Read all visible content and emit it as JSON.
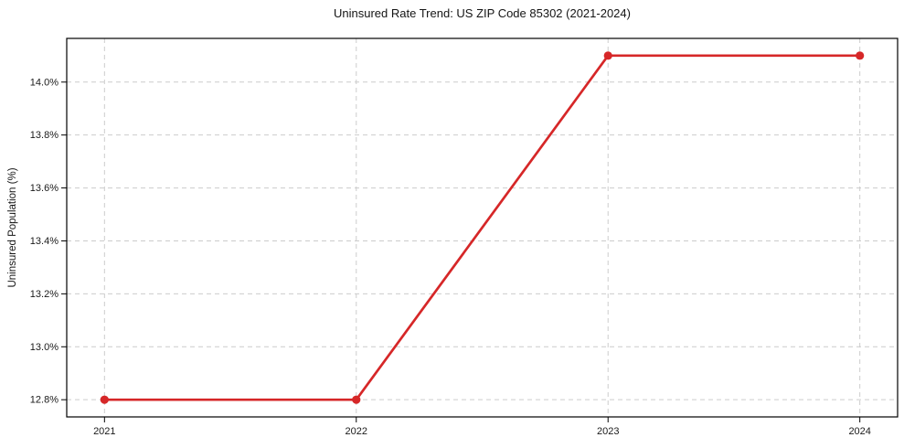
{
  "chart_data": {
    "type": "line",
    "title": "Uninsured Rate Trend: US ZIP Code 85302 (2021-2024)",
    "xlabel": "",
    "ylabel": "Uninsured Population (%)",
    "x": [
      2021,
      2022,
      2023,
      2024
    ],
    "values": [
      12.8,
      12.8,
      14.1,
      14.1
    ],
    "xlim": [
      2020.85,
      2024.15
    ],
    "ylim": [
      12.735,
      14.165
    ],
    "xticks": [
      2021,
      2022,
      2023,
      2024
    ],
    "xtick_labels": [
      "2021",
      "2022",
      "2023",
      "2024"
    ],
    "yticks": [
      12.8,
      13.0,
      13.2,
      13.4,
      13.6,
      13.8,
      14.0
    ],
    "ytick_labels": [
      "12.8%",
      "13.0%",
      "13.2%",
      "13.4%",
      "13.6%",
      "13.8%",
      "14.0%"
    ],
    "grid": true,
    "grid_style": "dashed",
    "legend_position": "none",
    "colors": {
      "line": "#d62728",
      "marker": "#d62728",
      "grid": "#cccccc",
      "spine": "#000000",
      "text": "#1a1a1a"
    }
  }
}
